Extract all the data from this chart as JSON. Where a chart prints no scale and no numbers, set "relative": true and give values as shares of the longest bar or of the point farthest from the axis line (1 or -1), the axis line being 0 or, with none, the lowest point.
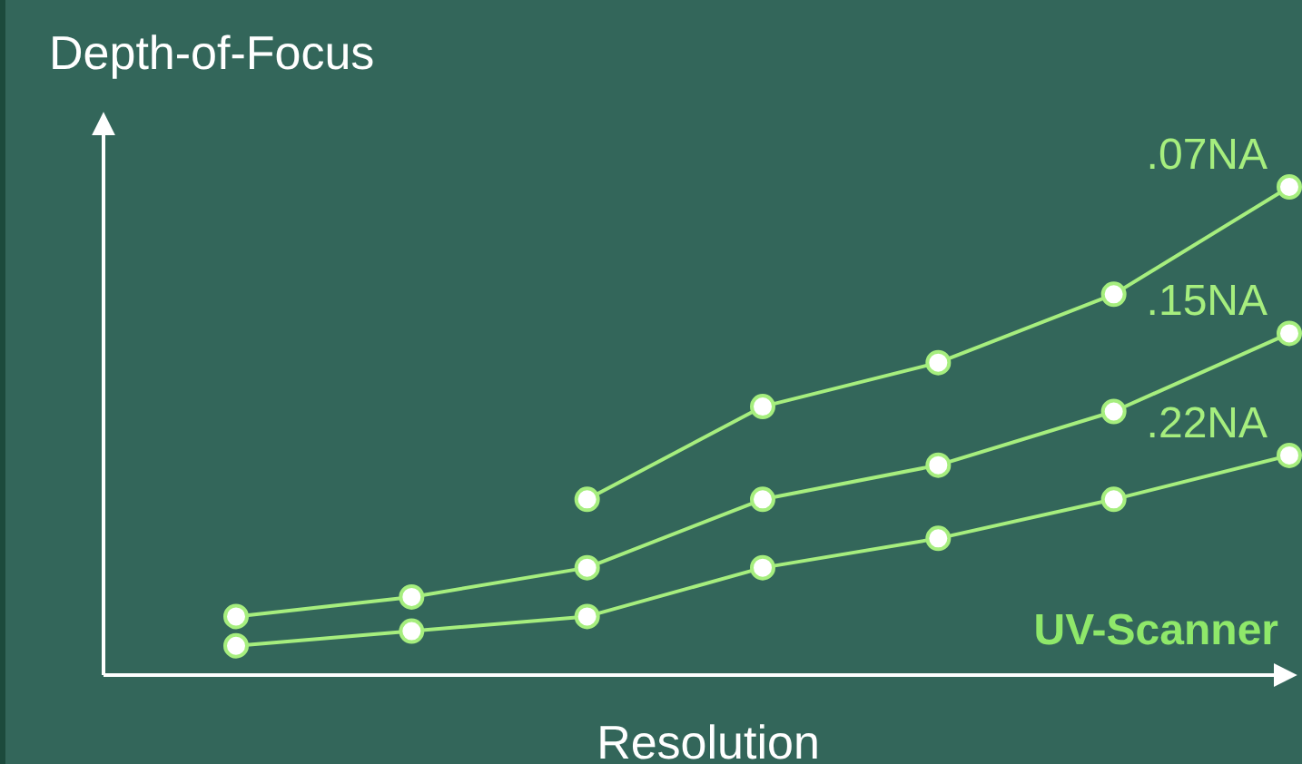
{
  "chart_data": {
    "type": "line",
    "title": "Depth-of-Focus",
    "xlabel": "Resolution",
    "relative": true,
    "marker": "circle",
    "annotations": [
      "UV-Scanner"
    ],
    "categories": [
      null,
      null,
      null,
      null,
      null,
      null,
      null
    ],
    "series": [
      {
        "name": ".07NA",
        "color": "#a6ee7e",
        "values": [
          null,
          null,
          0.36,
          0.55,
          0.64,
          0.78,
          1
        ]
      },
      {
        "name": ".15NA",
        "color": "#a6ee7e",
        "values": [
          0.12,
          0.16,
          0.22,
          0.36,
          0.43,
          0.54,
          0.7
        ]
      },
      {
        "name": ".22NA",
        "color": "#a6ee7e",
        "values": [
          0.06,
          0.09,
          0.12,
          0.22,
          0.28,
          0.36,
          0.45
        ]
      }
    ]
  }
}
